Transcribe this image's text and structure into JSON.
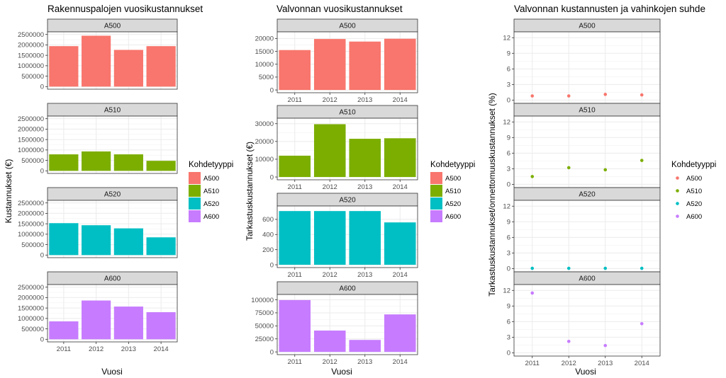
{
  "colors": {
    "A500": "#F8766D",
    "A510": "#7CAE00",
    "A520": "#00BFC4",
    "A600": "#C77CFF",
    "strip_bg": "#D9D9D9",
    "grid": "#EBEBEB"
  },
  "chart_data": [
    {
      "type": "bar",
      "title": "Rakennuspalojen vuosikustannukset",
      "xlabel": "",
      "ylabel": "Kustannukset (€)",
      "categories": [
        "2011",
        "2012",
        "2013",
        "2014"
      ],
      "shared_y": true,
      "ylim": [
        0,
        2500000
      ],
      "yticks": [
        0,
        500000,
        1000000,
        1500000,
        2000000,
        2500000
      ],
      "facets": [
        {
          "name": "A500",
          "values": [
            1940000,
            2440000,
            1760000,
            1940000
          ]
        },
        {
          "name": "A510",
          "values": [
            790000,
            930000,
            790000,
            480000
          ]
        },
        {
          "name": "A520",
          "values": [
            1530000,
            1430000,
            1280000,
            850000
          ]
        },
        {
          "name": "A600",
          "values": [
            860000,
            1860000,
            1570000,
            1300000
          ]
        }
      ],
      "x_tick_labels_bottom": [
        "2011",
        "2012",
        "2013",
        "2014"
      ],
      "bottom_xlabel": "Vuosi",
      "legend": {
        "title": "Kohdetyyppi",
        "items": [
          "A500",
          "A510",
          "A520",
          "A600"
        ],
        "placement": "right"
      }
    },
    {
      "type": "bar",
      "title": "Valvonnan vuosikustannukset",
      "ylabel": "Tarkastuskustannukset (€)",
      "categories": [
        "2011",
        "2012",
        "2013",
        "2014"
      ],
      "shared_y": false,
      "facets": [
        {
          "name": "A500",
          "values": [
            15500,
            19800,
            18800,
            19900
          ],
          "ylim": [
            0,
            21500
          ],
          "yticks": [
            0,
            5000,
            10000,
            15000,
            20000
          ]
        },
        {
          "name": "A510",
          "values": [
            12000,
            29700,
            21500,
            21800
          ],
          "ylim": [
            0,
            31500
          ],
          "yticks": [
            0,
            10000,
            20000,
            30000
          ]
        },
        {
          "name": "A520",
          "values": [
            710,
            710,
            710,
            560
          ],
          "ylim": [
            0,
            740
          ],
          "yticks": [
            0,
            200,
            400,
            600
          ]
        },
        {
          "name": "A600",
          "values": [
            99500,
            41000,
            23000,
            72000
          ],
          "ylim": [
            0,
            105000
          ],
          "yticks": [
            0,
            25000,
            50000,
            75000,
            100000
          ]
        }
      ],
      "x_tick_labels_each": [
        "2011",
        "2012",
        "2013",
        "2014"
      ],
      "bottom_xlabel": "Vuosi",
      "legend": {
        "title": "Kohdetyyppi",
        "items": [
          "A500",
          "A510",
          "A520",
          "A600"
        ],
        "placement": "right"
      }
    },
    {
      "type": "scatter",
      "title": "Valvonnan kustannusten ja vahinkojen suhde",
      "ylabel": "Tarkastuskustannukset/onnettomuuskustannukset (%)",
      "categories": [
        "2011",
        "2012",
        "2013",
        "2014"
      ],
      "shared_y": true,
      "ylim": [
        0,
        12.5
      ],
      "yticks": [
        0,
        3,
        6,
        9,
        12
      ],
      "facets": [
        {
          "name": "A500",
          "values": [
            0.8,
            0.8,
            1.1,
            1.0
          ]
        },
        {
          "name": "A510",
          "values": [
            1.5,
            3.2,
            2.8,
            4.6
          ]
        },
        {
          "name": "A520",
          "values": [
            0.05,
            0.05,
            0.05,
            0.05
          ]
        },
        {
          "name": "A600",
          "values": [
            11.5,
            2.2,
            1.4,
            5.6
          ]
        }
      ],
      "x_tick_labels_bottom": [
        "2011",
        "2012",
        "2013",
        "2014"
      ],
      "bottom_xlabel": "Vuosi",
      "legend": {
        "title": "Kohdetyyppi",
        "items": [
          "A500",
          "A510",
          "A520",
          "A600"
        ],
        "placement": "right"
      }
    }
  ]
}
